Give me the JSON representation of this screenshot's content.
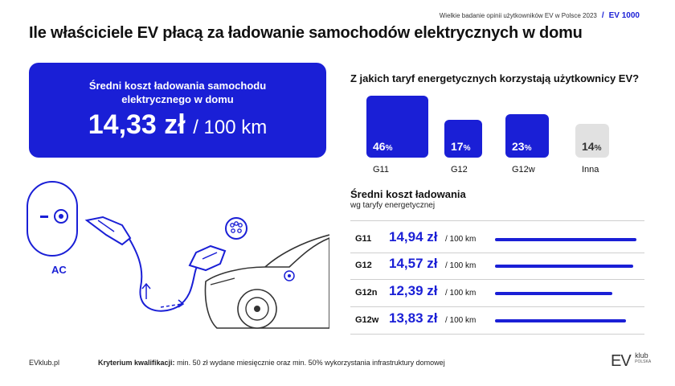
{
  "header": {
    "survey": "Wielkie badanie opinii użytkowników EV w Polsce 2023",
    "separator": "/",
    "brand": "EV 1000",
    "title": "Ile właściciele EV płacą za ładowanie samochodów elektrycznych w domu"
  },
  "kpi": {
    "label": "Średni koszt ładowania samochodu elektrycznego w domu",
    "value": "14,33 zł",
    "unit": "/ 100 km"
  },
  "illustration": {
    "ac_label": "AC"
  },
  "tariff_share": {
    "question": "Z jakich taryf energetycznych korzystają użytkownicy EV?",
    "colors": {
      "main": "#1a1fd6",
      "other": "#e1e1e1"
    }
  },
  "cost_by_tariff": {
    "title": "Średni koszt ładowania",
    "subtitle": "wg taryfy energetycznej",
    "unit": "/ 100 km",
    "color": "#1a1fd6"
  },
  "footer": {
    "site": "EVklub.pl",
    "criteria_label": "Kryterium kwalifikacji:",
    "criteria_text": "min. 50 zł wydane miesięcznie oraz min. 50% wykorzystania infrastruktury domowej",
    "logo_text": "EV",
    "logo_sub": "klub",
    "logo_sub2": "POLSKA"
  },
  "chart_data": [
    {
      "type": "bar",
      "title": "Z jakich taryf energetycznych korzystają użytkownicy EV?",
      "categories": [
        "G11",
        "G12",
        "G12w",
        "Inna"
      ],
      "values": [
        46,
        17,
        23,
        14
      ],
      "value_suffix": "%"
    },
    {
      "type": "bar",
      "title": "Średni koszt ładowania",
      "subtitle": "wg taryfy energetycznej",
      "categories": [
        "G11",
        "G12",
        "G12n",
        "G12w"
      ],
      "values": [
        14.94,
        14.57,
        12.39,
        13.83
      ],
      "value_labels": [
        "14,94 zł",
        "14,57 zł",
        "12,39 zł",
        "13,83 zł"
      ],
      "unit": "/ 100 km"
    }
  ]
}
